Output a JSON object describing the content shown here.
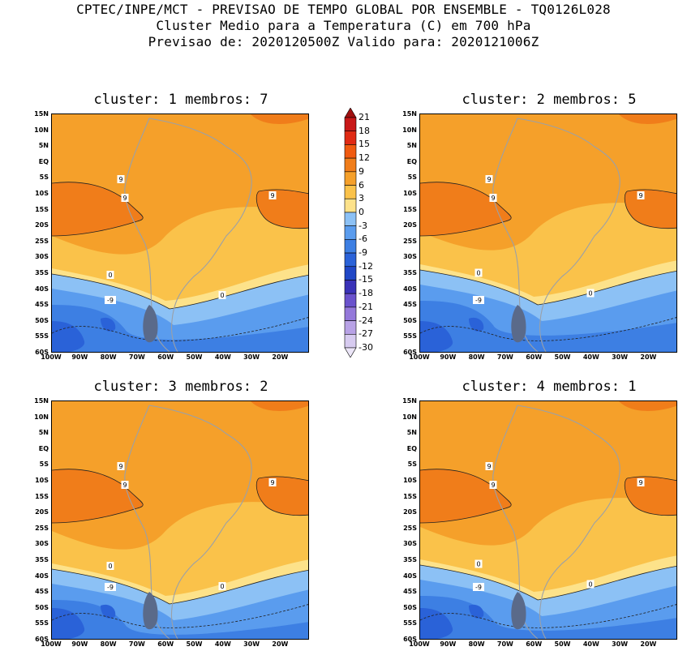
{
  "header": {
    "line1": "CPTEC/INPE/MCT - PREVISAO DE TEMPO GLOBAL POR ENSEMBLE - TQ0126L028",
    "line2": "Cluster Medio para a Temperatura (C) em 700 hPa",
    "line3": "Previsao de: 2020120500Z   Valido para: 2020121006Z"
  },
  "panels": [
    {
      "title": "cluster: 1  membros: 7"
    },
    {
      "title": "cluster: 2  membros: 5"
    },
    {
      "title": "cluster: 3  membros: 2"
    },
    {
      "title": "cluster: 4  membros: 1"
    }
  ],
  "lat_labels": [
    "15N",
    "10N",
    "5N",
    "EQ",
    "5S",
    "10S",
    "15S",
    "20S",
    "25S",
    "30S",
    "35S",
    "40S",
    "45S",
    "50S",
    "55S",
    "60S"
  ],
  "lon_labels": [
    "100W",
    "90W",
    "80W",
    "70W",
    "60W",
    "50W",
    "40W",
    "30W",
    "20W"
  ],
  "contour_labels": {
    "nine": "9",
    "zero": "0",
    "minus_nine": "-9"
  },
  "colorbar": {
    "levels": [
      "21",
      "18",
      "15",
      "12",
      "9",
      "6",
      "3",
      "0",
      "-3",
      "-6",
      "-9",
      "-12",
      "-15",
      "-18",
      "-21",
      "-24",
      "-27",
      "-30"
    ],
    "colors": [
      "#a01010",
      "#c81818",
      "#e02a14",
      "#f05a10",
      "#f07d1a",
      "#f5a02a",
      "#fac24a",
      "#fde28a",
      "#8cc1f5",
      "#5a9cee",
      "#3d7fe3",
      "#2a62d8",
      "#2047c6",
      "#3a32b8",
      "#6a52cc",
      "#9478da",
      "#b8a2e6",
      "#d7cbf0",
      "#ece6f8"
    ]
  }
}
